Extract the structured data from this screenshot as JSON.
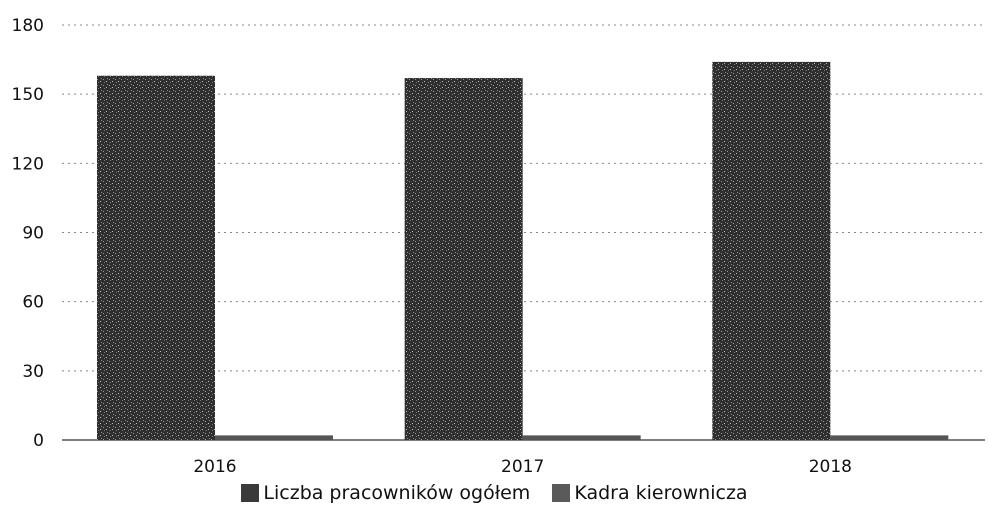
{
  "chart_data": {
    "type": "bar",
    "categories": [
      "2016",
      "2017",
      "2018"
    ],
    "series": [
      {
        "name": "Liczba pracowników ogółem",
        "values": [
          158,
          157,
          164
        ],
        "color": "#333333"
      },
      {
        "name": "Kadra kierownicza",
        "values": [
          2,
          2,
          2
        ],
        "color": "#555555"
      }
    ],
    "y_ticks": [
      "0",
      "30",
      "60",
      "90",
      "120",
      "150",
      "180"
    ],
    "ylim": [
      0,
      180
    ],
    "grid": true,
    "legend_position": "bottom"
  }
}
